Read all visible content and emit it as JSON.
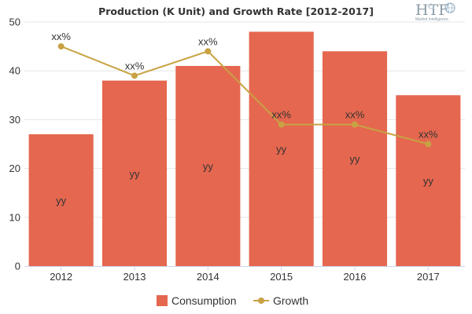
{
  "chart_data": {
    "type": "bar",
    "title": "Production (K Unit) and Growth Rate [2012-2017]",
    "categories": [
      "2012",
      "2013",
      "2014",
      "2015",
      "2016",
      "2017"
    ],
    "ylim": [
      0,
      50
    ],
    "yticks": [
      0,
      10,
      20,
      30,
      40,
      50
    ],
    "grid": true,
    "legend_position": "bottom-center",
    "series": [
      {
        "name": "Consumption",
        "type": "bar",
        "color": "#e5674f",
        "values": [
          27,
          38,
          41,
          48,
          44,
          35
        ],
        "data_labels": [
          "yy",
          "yy",
          "yy",
          "yy",
          "yy",
          "yy"
        ]
      },
      {
        "name": "Growth",
        "type": "line",
        "color": "#c8a243",
        "values": [
          45,
          39,
          44,
          29,
          29,
          25
        ],
        "data_labels": [
          "xx%",
          "xx%",
          "xx%",
          "xx%",
          "xx%",
          "xx%"
        ]
      }
    ]
  },
  "logo": {
    "text": "HTF",
    "subtext": "Market Intelligence"
  }
}
